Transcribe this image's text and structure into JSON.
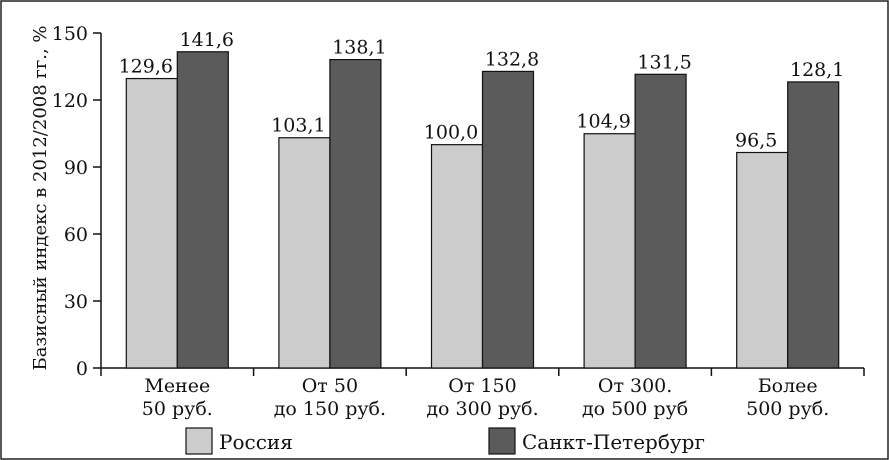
{
  "chart_data": {
    "type": "bar",
    "title": "",
    "ylabel": "Базисный индекс в 2012/2008 гг., %",
    "xlabel": "",
    "ylim": [
      0,
      150
    ],
    "yticks": [
      0,
      30,
      60,
      90,
      120,
      150
    ],
    "grid": false,
    "legend_position": "bottom",
    "categories": [
      [
        "Менее",
        "50 руб."
      ],
      [
        "От 50",
        "до 150 руб."
      ],
      [
        "От 150",
        "до 300 руб."
      ],
      [
        "От 300.",
        "до 500 руб"
      ],
      [
        "Более",
        "500 руб."
      ]
    ],
    "series": [
      {
        "name": "Россия",
        "color": "#cccccc",
        "values": [
          129.6,
          103.1,
          100.0,
          104.9,
          96.5
        ],
        "labels": [
          "129,6",
          "103,1",
          "100,0",
          "104,9",
          "96,5"
        ]
      },
      {
        "name": "Санкт-Петербург",
        "color": "#5b5b5b",
        "values": [
          141.6,
          138.1,
          132.8,
          131.5,
          128.1
        ],
        "labels": [
          "141,6",
          "138,1",
          "132,8",
          "131,5",
          "128,1"
        ]
      }
    ]
  }
}
